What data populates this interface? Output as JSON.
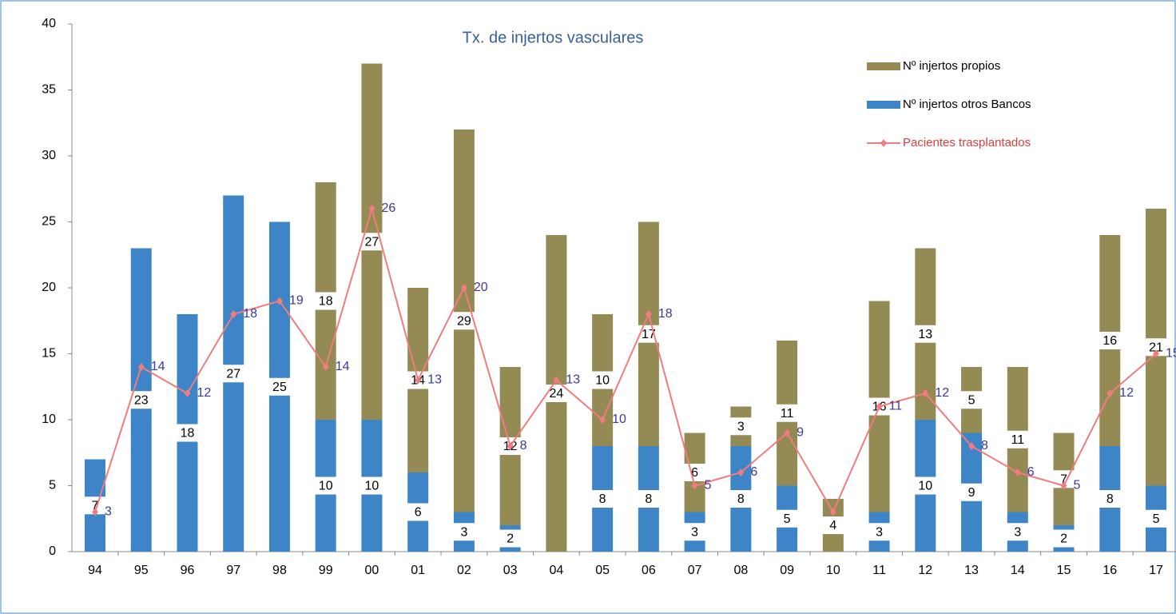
{
  "chart_data": {
    "type": "bar_line",
    "title": "Tx. de injertos vasculares",
    "categories": [
      "94",
      "95",
      "96",
      "97",
      "98",
      "99",
      "00",
      "01",
      "02",
      "03",
      "04",
      "05",
      "06",
      "07",
      "08",
      "09",
      "10",
      "11",
      "12",
      "13",
      "14",
      "15",
      "16",
      "17"
    ],
    "series": [
      {
        "name": "Nº injertos otros Bancos",
        "color": "#3d85c6",
        "kind": "bar",
        "values": [
          7,
          23,
          18,
          27,
          25,
          10,
          10,
          6,
          3,
          2,
          null,
          8,
          8,
          3,
          8,
          5,
          null,
          3,
          10,
          9,
          3,
          2,
          8,
          5
        ]
      },
      {
        "name": "Nº injertos propios",
        "color": "#948a54",
        "kind": "bar",
        "values": [
          null,
          null,
          null,
          null,
          null,
          18,
          27,
          14,
          29,
          12,
          24,
          10,
          17,
          6,
          3,
          11,
          4,
          16,
          13,
          5,
          11,
          7,
          16,
          21
        ]
      },
      {
        "name": "Pacientes trasplantados",
        "color": "#f07c80",
        "kind": "line",
        "values": [
          3,
          14,
          12,
          18,
          19,
          14,
          26,
          13,
          20,
          8,
          13,
          10,
          18,
          5,
          6,
          9,
          3,
          11,
          12,
          8,
          6,
          5,
          12,
          15
        ],
        "value_labels": [
          "3",
          "14",
          "12",
          "18",
          "19",
          "14",
          "26",
          "13",
          "20",
          "8",
          "13",
          "10",
          "18",
          "5",
          "6",
          "9",
          null,
          "11",
          "12",
          "8",
          "6",
          "5",
          "12",
          "15"
        ]
      }
    ],
    "ylim": [
      0,
      40
    ],
    "yticks": [
      0,
      5,
      10,
      15,
      20,
      25,
      30,
      35,
      40
    ],
    "legend": "top-right"
  }
}
